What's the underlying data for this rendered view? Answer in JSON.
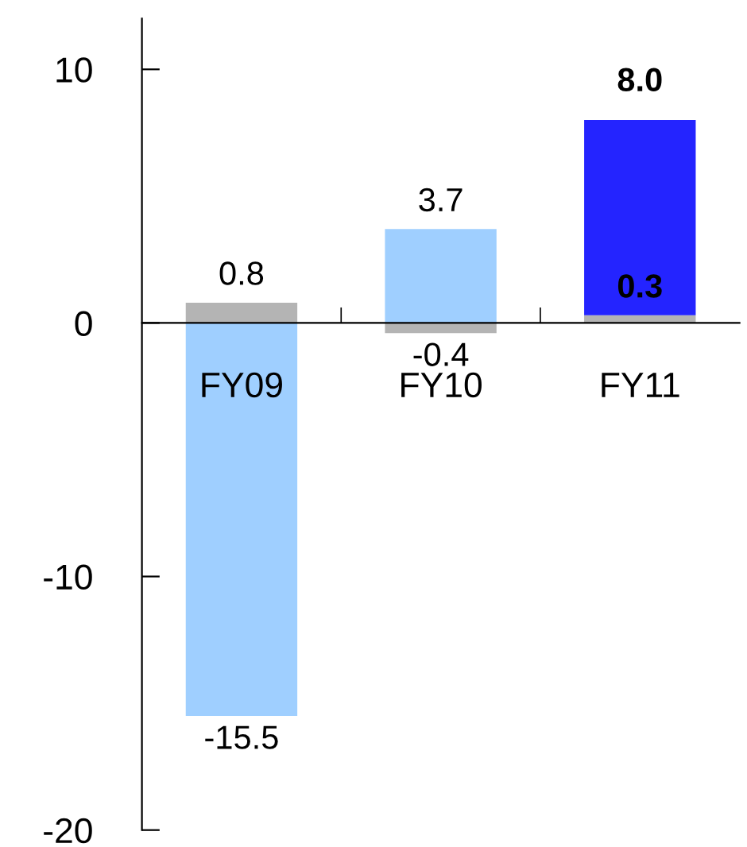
{
  "chart_data": {
    "type": "bar",
    "categories": [
      "FY09",
      "FY10",
      "FY11"
    ],
    "stacked": true,
    "series": [
      {
        "color": "#b4b4b4",
        "values": [
          0.8,
          -0.4,
          0.3
        ],
        "value_labels": [
          "0.8",
          "-0.4",
          "0.3"
        ]
      },
      {
        "colors": [
          "#9fcfff",
          "#9fcfff",
          "#2424ff"
        ],
        "values": [
          -15.5,
          3.7,
          7.7
        ],
        "value_labels": [
          "-15.5",
          "3.7",
          null
        ]
      }
    ],
    "totals": [
      null,
      null,
      "8.0"
    ],
    "ylim": [
      -20,
      12
    ],
    "yticks": [
      -20,
      -10,
      0,
      10
    ],
    "grid": false,
    "legend": false
  }
}
